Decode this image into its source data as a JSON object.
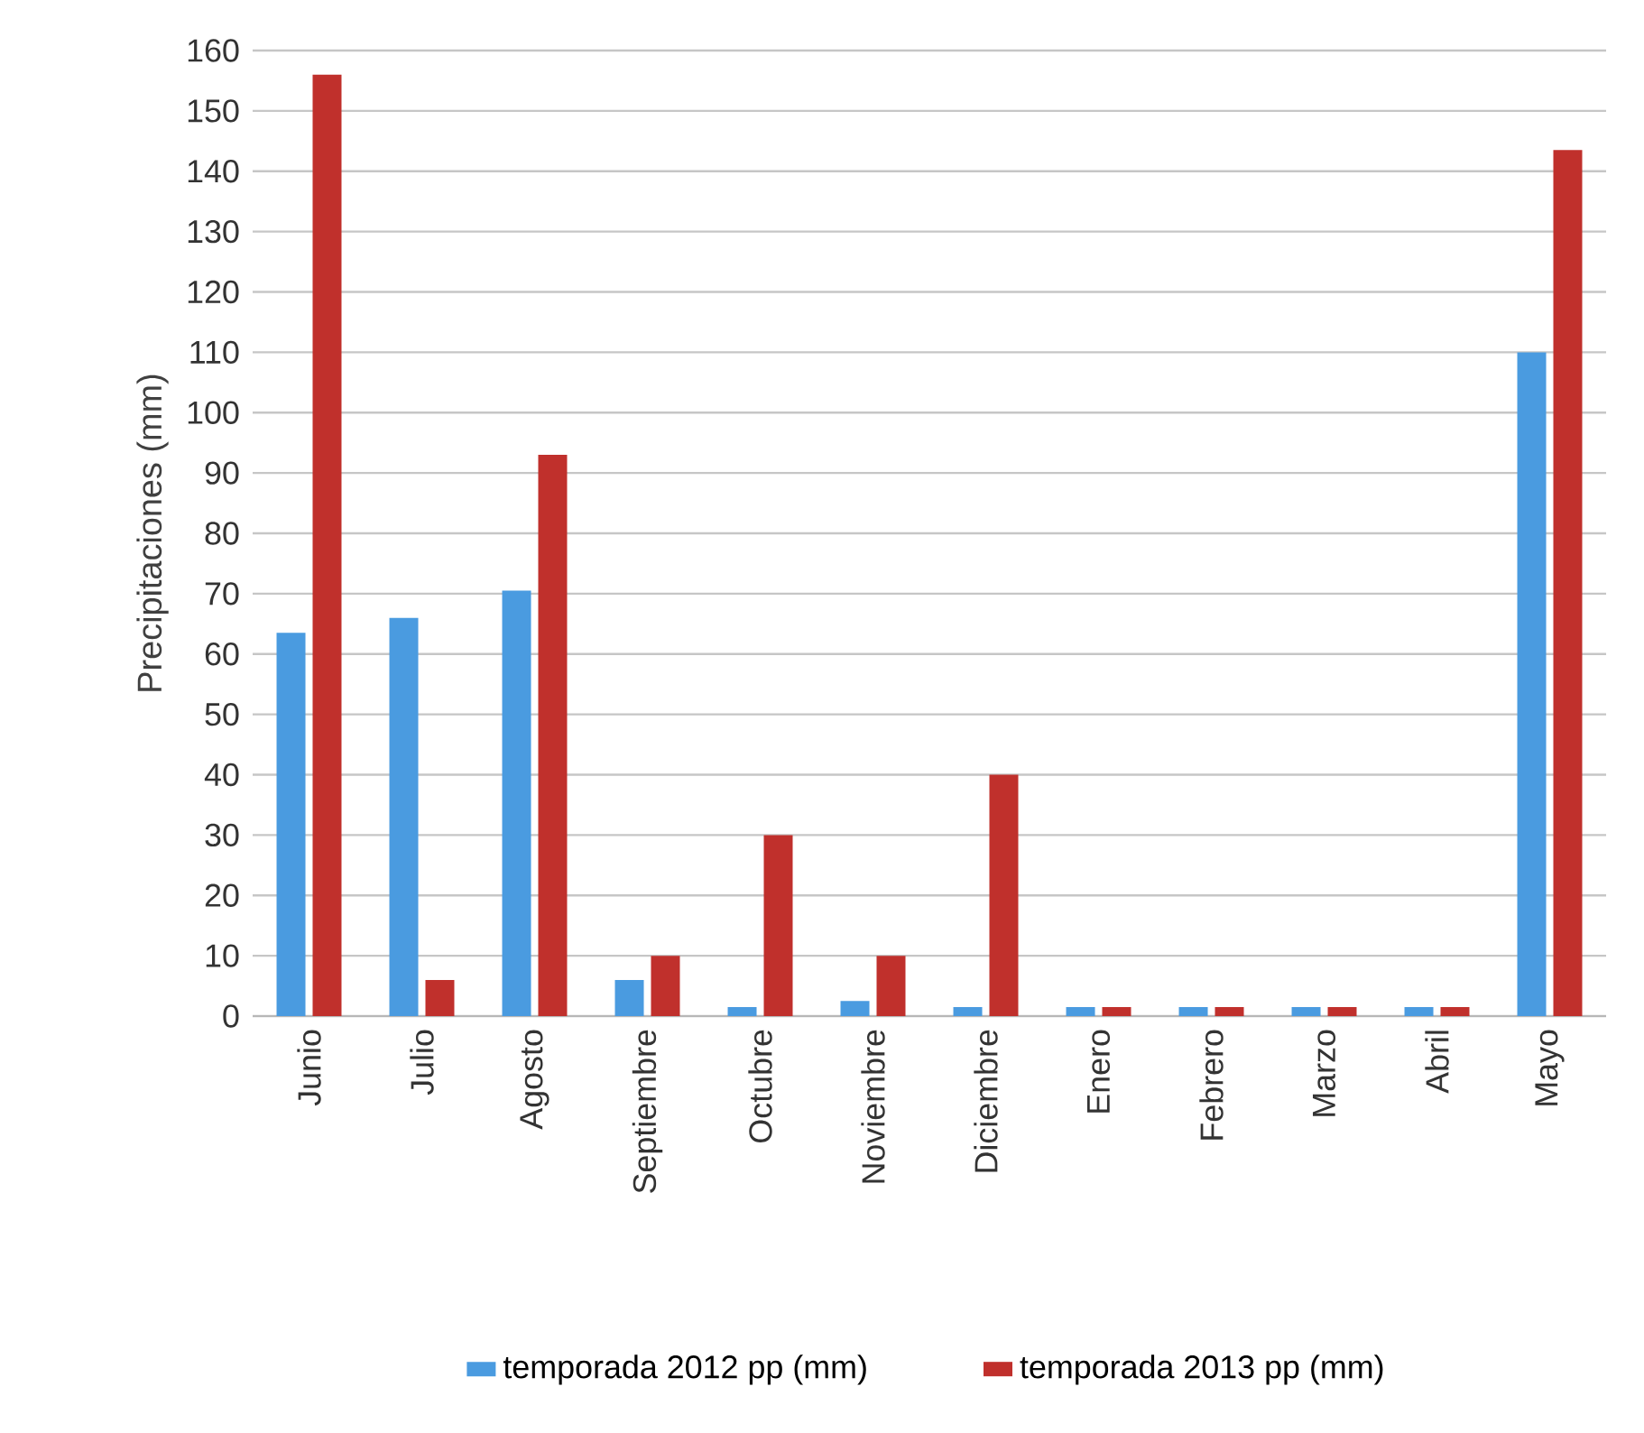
{
  "chart_data": {
    "type": "bar",
    "ylabel": "Precipitaciones (mm)",
    "categories": [
      "Junio",
      "Julio",
      "Agosto",
      "Septiembre",
      "Octubre",
      "Noviembre",
      "Diciembre",
      "Enero",
      "Febrero",
      "Marzo",
      "Abril",
      "Mayo"
    ],
    "series": [
      {
        "name": "temporada 2012 pp (mm)",
        "color": "#4a9be0",
        "values": [
          63.5,
          66,
          70.5,
          6,
          1.5,
          2.5,
          1.5,
          1.5,
          1.5,
          1.5,
          1.5,
          110
        ]
      },
      {
        "name": "temporada 2013 pp (mm)",
        "color": "#c0302c",
        "values": [
          156,
          6,
          93,
          10,
          30,
          10,
          40,
          1.5,
          1.5,
          1.5,
          1.5,
          143.5
        ]
      }
    ],
    "ylim": [
      0,
      160
    ],
    "yticks": [
      0,
      10,
      20,
      30,
      40,
      50,
      60,
      70,
      80,
      90,
      100,
      110,
      120,
      130,
      140,
      150,
      160
    ],
    "grid": "y",
    "legend": "bottom"
  }
}
